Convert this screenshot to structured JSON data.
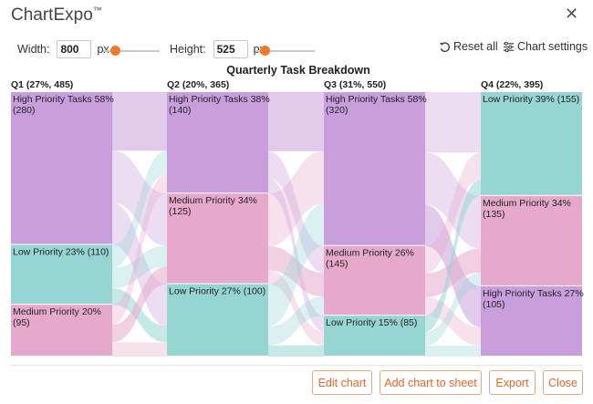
{
  "app": {
    "name": "ChartExpo",
    "trademark": "™"
  },
  "controls": {
    "width_label": "Width:",
    "width_value": "800",
    "width_unit": "px",
    "height_label": "Height:",
    "height_value": "525",
    "height_unit": "px",
    "reset_label": "Reset all",
    "settings_label": "Chart settings"
  },
  "buttons": {
    "edit": "Edit chart",
    "add": "Add chart to sheet",
    "export": "Export",
    "close": "Close"
  },
  "colors": {
    "high": "#c99edd",
    "medium": "#e6a9cc",
    "low": "#97d5d3",
    "accent": "#ee7a2a"
  },
  "chart_data": {
    "type": "sankey",
    "title": "Quarterly Task Breakdown",
    "stages": [
      {
        "label": "Q1 (27%, 485)",
        "nodes": [
          {
            "key": "high",
            "label": "High Priority Tasks 58%",
            "value": 280,
            "value_label": "(280)"
          },
          {
            "key": "low",
            "label": "Low Priority 23% (110)",
            "value": 110,
            "value_label": ""
          },
          {
            "key": "medium",
            "label": "Medium Priority 20%",
            "value": 95,
            "value_label": "(95)"
          }
        ]
      },
      {
        "label": "Q2 (20%, 365)",
        "nodes": [
          {
            "key": "high",
            "label": "High Priority Tasks 38%",
            "value": 140,
            "value_label": "(140)"
          },
          {
            "key": "medium",
            "label": "Medium Priority 34%",
            "value": 125,
            "value_label": "(125)"
          },
          {
            "key": "low",
            "label": "Low Priority 27% (100)",
            "value": 100,
            "value_label": ""
          }
        ]
      },
      {
        "label": "Q3 (31%, 550)",
        "nodes": [
          {
            "key": "high",
            "label": "High Priority Tasks 58%",
            "value": 320,
            "value_label": "(320)"
          },
          {
            "key": "medium",
            "label": "Medium Priority 26%",
            "value": 145,
            "value_label": "(145)"
          },
          {
            "key": "low",
            "label": "Low Priority 15% (85)",
            "value": 85,
            "value_label": ""
          }
        ]
      },
      {
        "label": "Q4 (22%, 395)",
        "nodes": [
          {
            "key": "low",
            "label": "Low Priority 39% (155)",
            "value": 155,
            "value_label": ""
          },
          {
            "key": "medium",
            "label": "Medium Priority 34%",
            "value": 135,
            "value_label": "(135)"
          },
          {
            "key": "high",
            "label": "High Priority Tasks 27%",
            "value": 105,
            "value_label": "(105)"
          }
        ]
      }
    ]
  }
}
